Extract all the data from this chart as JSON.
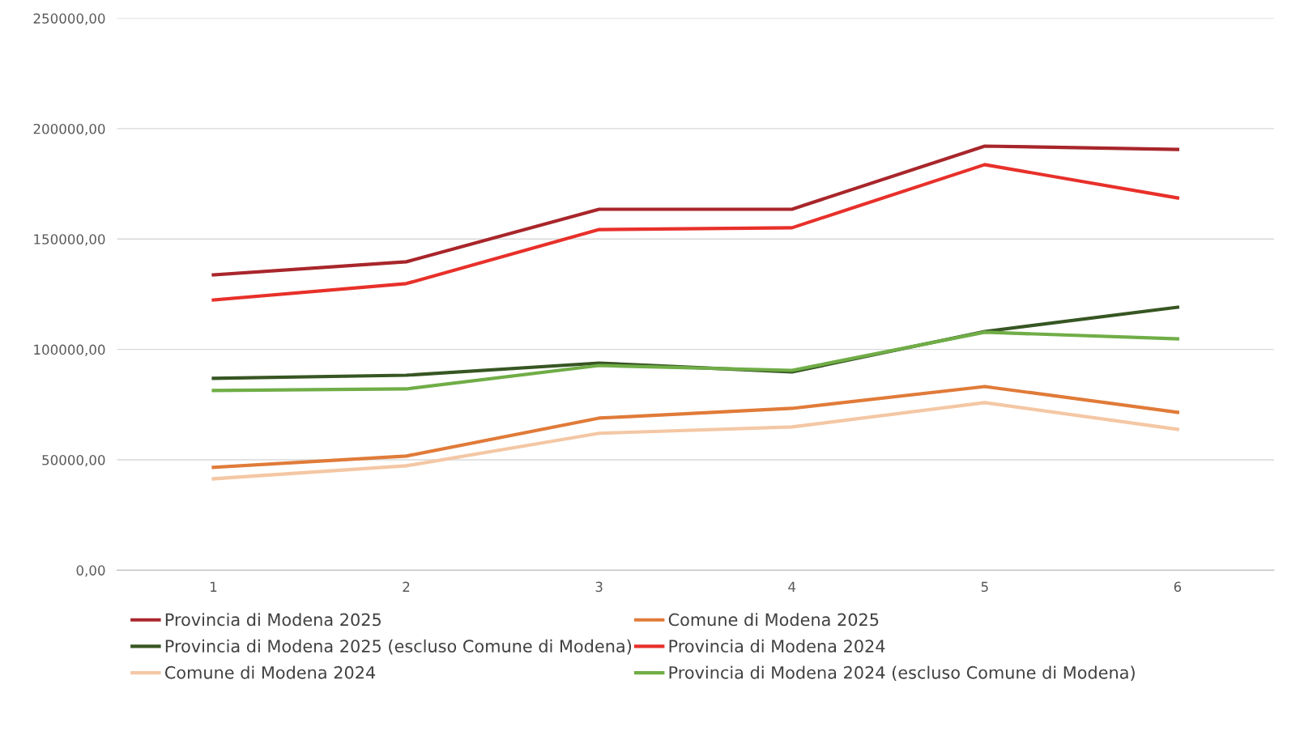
{
  "chart_data": {
    "type": "line",
    "categories": [
      "1",
      "2",
      "3",
      "4",
      "5",
      "6"
    ],
    "series": [
      {
        "name": "Provincia di Modena 2025",
        "color": "#a8262b",
        "values": [
          133800,
          139700,
          163500,
          163500,
          192100,
          190600
        ]
      },
      {
        "name": "Comune di Modena 2025",
        "color": "#e07b39",
        "values": [
          46600,
          51700,
          68900,
          73300,
          83200,
          71500
        ]
      },
      {
        "name": "Provincia di Modena 2025 (escluso Comune di Modena)",
        "color": "#375623",
        "values": [
          86900,
          88300,
          93800,
          89800,
          108100,
          119100
        ]
      },
      {
        "name": "Provincia di Modena 2024",
        "color": "#e8302a",
        "values": [
          122400,
          129800,
          154300,
          155100,
          183700,
          168600
        ]
      },
      {
        "name": "Comune di Modena 2024",
        "color": "#f4c7a4",
        "values": [
          41400,
          47300,
          62000,
          64900,
          75900,
          63800
        ]
      },
      {
        "name": "Provincia di Modena 2024 (escluso Comune di Modena)",
        "color": "#70ad47",
        "values": [
          81400,
          82100,
          92700,
          90500,
          107800,
          104800
        ]
      }
    ],
    "ylim": [
      0,
      250000
    ],
    "yticks": [
      {
        "value": 0,
        "label": "0,00"
      },
      {
        "value": 50000,
        "label": "50000,00"
      },
      {
        "value": 100000,
        "label": "100000,00"
      },
      {
        "value": 150000,
        "label": "150000,00"
      },
      {
        "value": 200000,
        "label": "200000,00"
      },
      {
        "value": 250000,
        "label": "250000,00"
      }
    ],
    "grid": "y",
    "legend": "bottom",
    "marker": "none",
    "line_style": "solid"
  }
}
